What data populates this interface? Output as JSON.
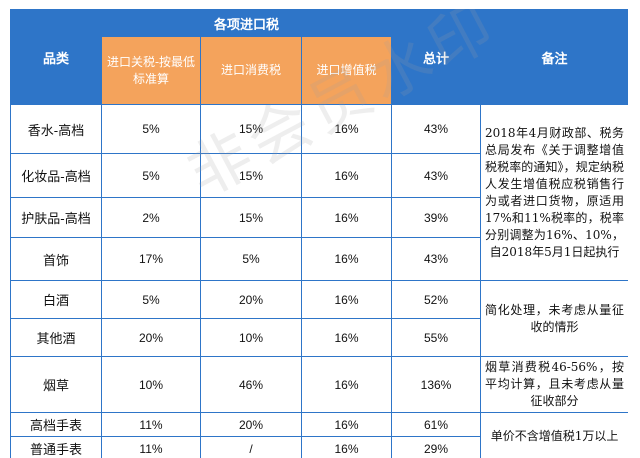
{
  "header": {
    "category": "品类",
    "group": "各项进口税",
    "tariff": "进口关税-按最低标准算",
    "consumption": "进口消费税",
    "vat": "进口增值税",
    "total": "总计",
    "note": "备注"
  },
  "rows": [
    {
      "category": "香水-高档",
      "tariff": "5%",
      "consumption": "15%",
      "vat": "16%",
      "total": "43%"
    },
    {
      "category": "化妆品-高档",
      "tariff": "5%",
      "consumption": "15%",
      "vat": "16%",
      "total": "43%"
    },
    {
      "category": "护肤品-高档",
      "tariff": "2%",
      "consumption": "15%",
      "vat": "16%",
      "total": "39%"
    },
    {
      "category": "首饰",
      "tariff": "17%",
      "consumption": "5%",
      "vat": "16%",
      "total": "43%"
    },
    {
      "category": "白酒",
      "tariff": "5%",
      "consumption": "20%",
      "vat": "16%",
      "total": "52%"
    },
    {
      "category": "其他酒",
      "tariff": "20%",
      "consumption": "10%",
      "vat": "16%",
      "total": "55%"
    },
    {
      "category": "烟草",
      "tariff": "10%",
      "consumption": "46%",
      "vat": "16%",
      "total": "136%"
    },
    {
      "category": "高档手表",
      "tariff": "11%",
      "consumption": "20%",
      "vat": "16%",
      "total": "61%"
    },
    {
      "category": "普通手表",
      "tariff": "11%",
      "consumption": "/",
      "vat": "16%",
      "total": "29%"
    }
  ],
  "notes": {
    "vat_adjust": "2018年4月财政部、税务总局发布《关于调整增值税税率的通知》，规定纳税人发生增值税应税销售行为或者进口货物，原适用17%和11%税率的，税率分别调整为16%、10%，自2018年5月1日起执行",
    "liquor": "简化处理，未考虑从量征收的情形",
    "tobacco": "烟草消费税46-56%，按平均计算，且未考虑从量征收部分",
    "watch": "单价不含增值税1万以上"
  },
  "watermark": "非会员水印"
}
